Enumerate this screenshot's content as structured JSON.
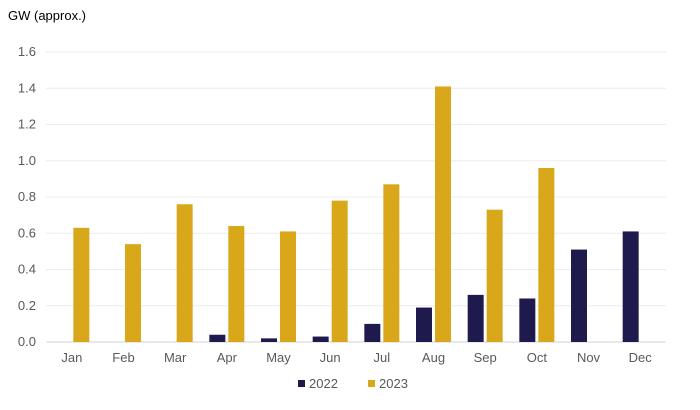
{
  "chart_data": {
    "type": "bar",
    "ylabel": "GW (approx.)",
    "ylim": [
      0,
      1.6
    ],
    "yticks": [
      "0.0",
      "0.2",
      "0.4",
      "0.6",
      "0.8",
      "1.0",
      "1.2",
      "1.4",
      "1.6"
    ],
    "categories": [
      "Jan",
      "Feb",
      "Mar",
      "Apr",
      "May",
      "Jun",
      "Jul",
      "Aug",
      "Sep",
      "Oct",
      "Nov",
      "Dec"
    ],
    "series": [
      {
        "name": "2022",
        "color": "#1f1a4d",
        "values": [
          0,
          0,
          0,
          0.04,
          0.02,
          0.03,
          0.1,
          0.19,
          0.26,
          0.24,
          0.51,
          0.61
        ]
      },
      {
        "name": "2023",
        "color": "#d9a81a",
        "values": [
          0.63,
          0.54,
          0.76,
          0.64,
          0.61,
          0.78,
          0.87,
          1.41,
          0.73,
          0.96,
          0,
          0
        ]
      }
    ],
    "grid": true,
    "legend": "bottom-center"
  }
}
